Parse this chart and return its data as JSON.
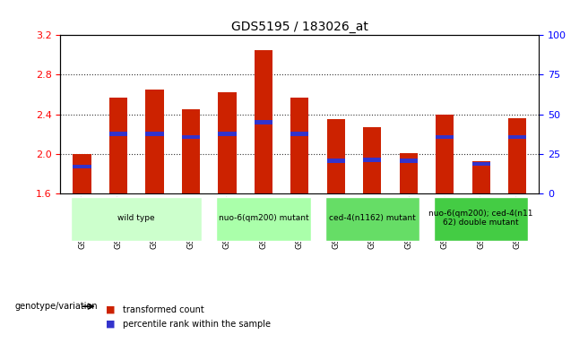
{
  "title": "GDS5195 / 183026_at",
  "samples": [
    "GSM1305989",
    "GSM1305990",
    "GSM1305991",
    "GSM1305992",
    "GSM1305996",
    "GSM1305997",
    "GSM1305998",
    "GSM1306002",
    "GSM1306003",
    "GSM1306004",
    "GSM1306008",
    "GSM1306009",
    "GSM1306010"
  ],
  "bar_tops": [
    2.0,
    2.57,
    2.65,
    2.45,
    2.62,
    3.05,
    2.57,
    2.35,
    2.27,
    2.01,
    2.4,
    1.93,
    2.36
  ],
  "blue_markers": [
    1.87,
    2.2,
    2.2,
    2.17,
    2.2,
    2.32,
    2.2,
    1.93,
    1.94,
    1.93,
    2.17,
    1.9,
    2.17
  ],
  "bar_bottom": 1.6,
  "ylim_left": [
    1.6,
    3.2
  ],
  "ylim_right": [
    0,
    100
  ],
  "yticks_left": [
    1.6,
    2.0,
    2.4,
    2.8,
    3.2
  ],
  "yticks_right": [
    0,
    25,
    50,
    75,
    100
  ],
  "bar_color": "#cc2200",
  "blue_color": "#3333cc",
  "bg_color": "#f0f0f0",
  "grid_color": "#333333",
  "groups": [
    {
      "label": "wild type",
      "start": 0,
      "end": 4,
      "color": "#ccffcc"
    },
    {
      "label": "nuo-6(qm200) mutant",
      "start": 4,
      "end": 7,
      "color": "#aaffaa"
    },
    {
      "label": "ced-4(n1162) mutant",
      "start": 7,
      "end": 10,
      "color": "#66dd66"
    },
    {
      "label": "nuo-6(qm200); ced-4(n11\n62) double mutant",
      "start": 10,
      "end": 13,
      "color": "#44cc44"
    }
  ],
  "xlabel_left": "genotype/variation",
  "legend_items": [
    {
      "label": "transformed count",
      "color": "#cc2200"
    },
    {
      "label": "percentile rank within the sample",
      "color": "#3333cc"
    }
  ],
  "bar_width": 0.5
}
